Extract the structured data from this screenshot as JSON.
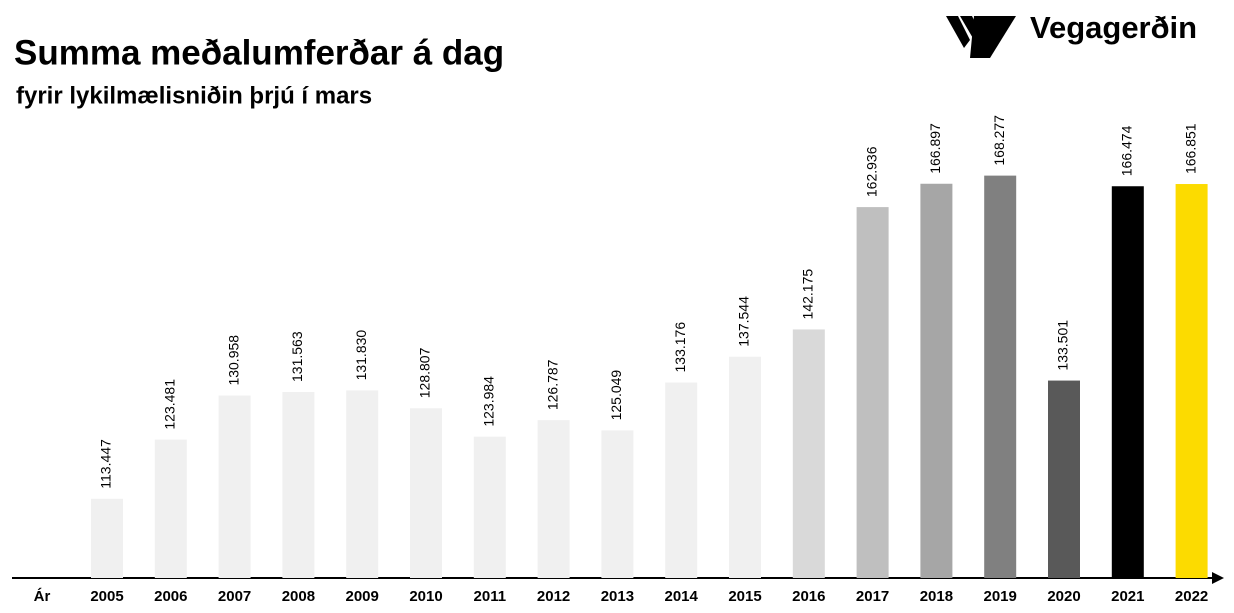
{
  "logo": "Vegagerðin",
  "chart_data": {
    "type": "bar",
    "title": "Summa meðalumferðar á dag",
    "subtitle": "fyrir lykilmælisniðin þrjú í mars",
    "x_label": "Ár",
    "categories": [
      "2005",
      "2006",
      "2007",
      "2008",
      "2009",
      "2010",
      "2011",
      "2012",
      "2013",
      "2014",
      "2015",
      "2016",
      "2017",
      "2018",
      "2019",
      "2020",
      "2021",
      "2022"
    ],
    "values": [
      113447,
      123481,
      130958,
      131563,
      131830,
      128807,
      123984,
      126787,
      125049,
      133176,
      137544,
      142175,
      162936,
      166897,
      168277,
      133501,
      166474,
      166851
    ],
    "value_labels": [
      "113.447",
      "123.481",
      "130.958",
      "131.563",
      "131.830",
      "128.807",
      "123.984",
      "126.787",
      "125.049",
      "133.176",
      "137.544",
      "142.175",
      "162.936",
      "166.897",
      "168.277",
      "133.501",
      "166.474",
      "166.851"
    ],
    "colors": [
      "#f0f0f0",
      "#f0f0f0",
      "#f0f0f0",
      "#f0f0f0",
      "#f0f0f0",
      "#f0f0f0",
      "#f0f0f0",
      "#f0f0f0",
      "#f0f0f0",
      "#f0f0f0",
      "#f0f0f0",
      "#d9d9d9",
      "#bfbfbf",
      "#a6a6a6",
      "#808080",
      "#595959",
      "#000000",
      "#fcdb00"
    ],
    "ylim": [
      100000,
      175000
    ]
  }
}
